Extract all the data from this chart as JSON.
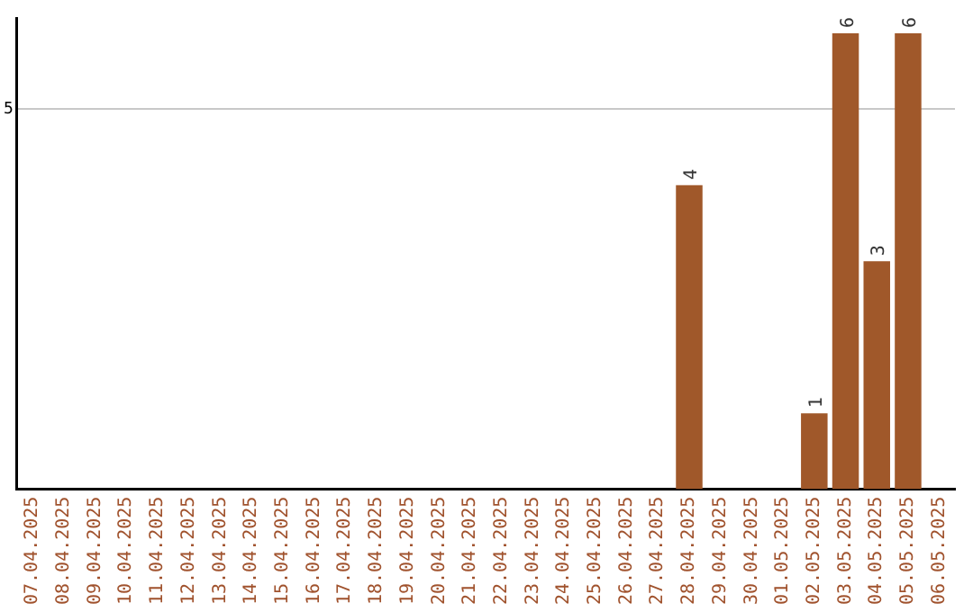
{
  "chart_data": {
    "type": "bar",
    "categories": [
      "07.04.2025",
      "08.04.2025",
      "09.04.2025",
      "10.04.2025",
      "11.04.2025",
      "12.04.2025",
      "13.04.2025",
      "14.04.2025",
      "15.04.2025",
      "16.04.2025",
      "17.04.2025",
      "18.04.2025",
      "19.04.2025",
      "20.04.2025",
      "21.04.2025",
      "22.04.2025",
      "23.04.2025",
      "24.04.2025",
      "25.04.2025",
      "26.04.2025",
      "27.04.2025",
      "28.04.2025",
      "29.04.2025",
      "30.04.2025",
      "01.05.2025",
      "02.05.2025",
      "03.05.2025",
      "04.05.2025",
      "05.05.2025",
      "06.05.2025"
    ],
    "values": [
      null,
      null,
      null,
      null,
      null,
      null,
      null,
      null,
      null,
      null,
      null,
      null,
      null,
      null,
      null,
      null,
      null,
      null,
      null,
      null,
      null,
      4,
      null,
      null,
      null,
      1,
      6,
      3,
      6,
      null
    ],
    "color": "#a0582a",
    "ylim": [
      0,
      6.2
    ],
    "yticks": [
      5
    ],
    "grid": "y",
    "data_labels": true,
    "legend": false
  }
}
